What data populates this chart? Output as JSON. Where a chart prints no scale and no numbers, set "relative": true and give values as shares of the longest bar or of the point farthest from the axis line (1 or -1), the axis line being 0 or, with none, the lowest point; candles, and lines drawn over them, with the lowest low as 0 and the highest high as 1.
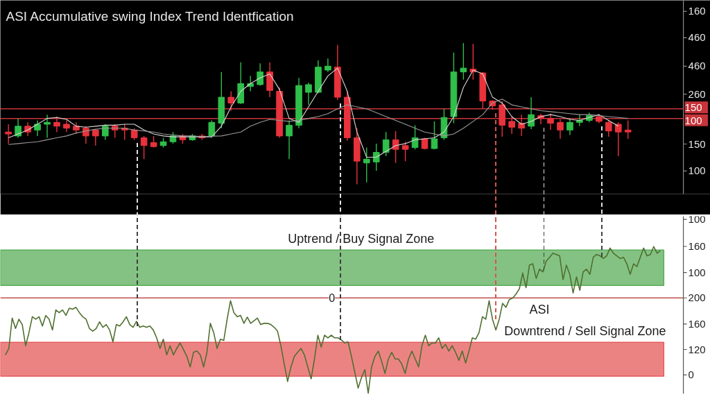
{
  "chart_data": [
    {
      "type": "candlestick",
      "title": "ASI Accumulative swing Index Trend Identfication",
      "relative": true,
      "tick_labels": false,
      "categories": [
        null,
        null,
        null,
        null,
        null,
        null,
        null,
        null,
        null,
        null,
        null,
        null,
        null,
        null,
        null,
        null,
        null,
        null,
        null,
        null,
        null,
        null,
        null,
        null,
        null,
        null,
        null,
        null,
        null,
        null,
        null,
        null,
        null,
        null,
        null,
        null,
        null,
        null,
        null,
        null,
        null,
        null,
        null,
        null,
        null,
        null,
        null,
        null,
        null,
        null,
        null,
        null,
        null,
        null,
        null,
        null,
        null,
        null,
        null,
        null,
        null,
        null,
        null,
        null,
        null
      ],
      "ohlc": [
        [
          0.37,
          0.425,
          0.288,
          0.356
        ],
        [
          0.342,
          0.466,
          0.329,
          0.411
        ],
        [
          0.411,
          0.438,
          0.342,
          0.37
        ],
        [
          0.384,
          0.452,
          0.342,
          0.425
        ],
        [
          0.425,
          0.493,
          0.329,
          0.438
        ],
        [
          0.438,
          0.479,
          0.37,
          0.411
        ],
        [
          0.425,
          0.452,
          0.37,
          0.397
        ],
        [
          0.411,
          0.438,
          0.356,
          0.384
        ],
        [
          0.397,
          0.411,
          0.288,
          0.342
        ],
        [
          0.384,
          0.39,
          0.274,
          0.342
        ],
        [
          0.342,
          0.425,
          0.315,
          0.411
        ],
        [
          0.411,
          0.425,
          0.329,
          0.384
        ],
        [
          0.397,
          0.425,
          0.315,
          0.384
        ],
        [
          0.384,
          0.397,
          0.315,
          0.329
        ],
        [
          0.329,
          0.342,
          0.178,
          0.274
        ],
        [
          0.295,
          0.342,
          0.26,
          0.267
        ],
        [
          0.274,
          0.329,
          0.26,
          0.301
        ],
        [
          0.301,
          0.37,
          0.288,
          0.342
        ],
        [
          0.342,
          0.356,
          0.288,
          0.315
        ],
        [
          0.315,
          0.356,
          0.308,
          0.342
        ],
        [
          0.342,
          0.356,
          0.315,
          0.329
        ],
        [
          0.342,
          0.452,
          0.329,
          0.438
        ],
        [
          0.432,
          0.795,
          0.397,
          0.616
        ],
        [
          0.616,
          0.658,
          0.521,
          0.575
        ],
        [
          0.575,
          0.863,
          0.568,
          0.712
        ],
        [
          0.692,
          0.767,
          0.658,
          0.712
        ],
        [
          0.705,
          0.856,
          0.699,
          0.795
        ],
        [
          0.795,
          0.863,
          0.616,
          0.664
        ],
        [
          0.658,
          0.685,
          0.329,
          0.342
        ],
        [
          0.342,
          0.452,
          0.178,
          0.418
        ],
        [
          0.418,
          0.753,
          0.397,
          0.699
        ],
        [
          0.651,
          0.719,
          0.562,
          0.705
        ],
        [
          0.651,
          0.877,
          0.644,
          0.829
        ],
        [
          0.808,
          0.89,
          0.795,
          0.836
        ],
        [
          0.829,
          0.986,
          0.596,
          0.616
        ],
        [
          0.616,
          0.658,
          0.308,
          0.329
        ],
        [
          0.329,
          0.397,
          0,
          0.164
        ],
        [
          0.151,
          0.26,
          0.014,
          0.178
        ],
        [
          0.158,
          0.288,
          0.096,
          0.226
        ],
        [
          0.226,
          0.37,
          0.199,
          0.315
        ],
        [
          0.315,
          0.377,
          0.151,
          0.247
        ],
        [
          0.274,
          0.301,
          0.164,
          0.247
        ],
        [
          0.26,
          0.418,
          0.247,
          0.329
        ],
        [
          0.322,
          0.329,
          0.247,
          0.253
        ],
        [
          0.253,
          0.445,
          0.247,
          0.322
        ],
        [
          0.329,
          0.534,
          0.315,
          0.473
        ],
        [
          0.479,
          0.932,
          0.432,
          0.795
        ],
        [
          0.795,
          1,
          0.74,
          0.822
        ],
        [
          0.815,
          0.993,
          0.74,
          0.795
        ],
        [
          0.788,
          0.795,
          0.534,
          0.589
        ],
        [
          0.589,
          0.596,
          0.527,
          0.555
        ],
        [
          0.562,
          0.589,
          0.336,
          0.418
        ],
        [
          0.445,
          0.479,
          0.356,
          0.404
        ],
        [
          0.432,
          0.493,
          0.342,
          0.397
        ],
        [
          0.411,
          0.616,
          0.39,
          0.493
        ],
        [
          0.486,
          0.5,
          0.425,
          0.466
        ],
        [
          0.466,
          0.5,
          0.384,
          0.432
        ],
        [
          0.438,
          0.459,
          0.322,
          0.384
        ],
        [
          0.384,
          0.466,
          0.349,
          0.438
        ],
        [
          0.438,
          0.493,
          0.411,
          0.452
        ],
        [
          0.452,
          0.507,
          0.438,
          0.486
        ],
        [
          0.479,
          0.493,
          0.432,
          0.445
        ],
        [
          0.438,
          0.452,
          0.336,
          0.377
        ],
        [
          0.425,
          0.438,
          0.199,
          0.37
        ],
        [
          0.384,
          0.452,
          0.322,
          0.37
        ]
      ],
      "colors": [
        "#e8323c",
        "#2fbf4a",
        "#e8323c",
        "#2fbf4a",
        "#2fbf4a",
        "#e8323c",
        "#e8323c",
        "#e8323c",
        "#e8323c",
        "#e8323c",
        "#2fbf4a",
        "#e8323c",
        "#e8323c",
        "#e8323c",
        "#e8323c",
        "#e8323c",
        "#2fbf4a",
        "#2fbf4a",
        "#e8323c",
        "#2fbf4a",
        "#e8323c",
        "#2fbf4a",
        "#2fbf4a",
        "#e8323c",
        "#2fbf4a",
        "#2fbf4a",
        "#2fbf4a",
        "#e8323c",
        "#e8323c",
        "#2fbf4a",
        "#2fbf4a",
        "#2fbf4a",
        "#2fbf4a",
        "#2fbf4a",
        "#e8323c",
        "#e8323c",
        "#e8323c",
        "#2fbf4a",
        "#2fbf4a",
        "#2fbf4a",
        "#e8323c",
        "#e8323c",
        "#2fbf4a",
        "#e8323c",
        "#2fbf4a",
        "#2fbf4a",
        "#2fbf4a",
        "#2fbf4a",
        "#e8323c",
        "#e8323c",
        "#e8323c",
        "#e8323c",
        "#e8323c",
        "#e8323c",
        "#2fbf4a",
        "#e8323c",
        "#e8323c",
        "#e8323c",
        "#2fbf4a",
        "#2fbf4a",
        "#2fbf4a",
        "#e8323c",
        "#e8323c",
        "#e8323c",
        "#e8323c"
      ],
      "series": [
        {
          "type": "line",
          "color": "#d8d8d8",
          "values": [
            0.329,
            0.356,
            0.384,
            0.425,
            0.466,
            0.473,
            0.459,
            0.411,
            0.404,
            0.411,
            0.418,
            0.418,
            0.425,
            0.425,
            0.384,
            0.356,
            0.342,
            0.336,
            0.336,
            0.336,
            0.336,
            0.336,
            0.411,
            0.548,
            0.658,
            0.712,
            0.753,
            0.781,
            0.671,
            0.466,
            0.438,
            0.548,
            0.658,
            0.767,
            0.822,
            0.658,
            0.37,
            0.192,
            0.192,
            0.233,
            0.274,
            0.288,
            0.315,
            0.322,
            0.329,
            0.37,
            0.479,
            0.685,
            0.808,
            0.781,
            0.616,
            0.575,
            0.479,
            0.425,
            0.445,
            0.479,
            0.493,
            0.479,
            0.459,
            0.452,
            0.473,
            0.493,
            0.452,
            0.411,
            null
          ]
        },
        {
          "type": "line",
          "color": "#9a9a9a",
          "values": [
            0.281,
            0.288,
            0.295,
            0.301,
            0.315,
            0.329,
            0.342,
            0.363,
            0.377,
            0.39,
            0.397,
            0.397,
            0.397,
            0.384,
            0.377,
            0.37,
            0.356,
            0.349,
            0.342,
            0.342,
            0.338,
            0.34,
            0.342,
            0.356,
            0.37,
            0.411,
            0.438,
            0.459,
            0.452,
            0.445,
            0.452,
            0.466,
            0.479,
            0.5,
            0.534,
            0.562,
            0.548,
            0.534,
            0.507,
            0.479,
            0.452,
            0.425,
            0.397,
            0.37,
            0.356,
            0.342,
            0.356,
            0.397,
            0.445,
            0.493,
            0.575,
            0.603,
            0.562,
            0.548,
            0.534,
            0.521,
            0.514,
            0.507,
            0.5,
            0.493,
            0.493,
            0.486,
            0.479,
            0.473,
            0.466
          ]
        }
      ],
      "ref_lines": [
        {
          "axis": "y",
          "value": 0.534,
          "color": "#c8343a"
        },
        {
          "axis": "y",
          "value": 0.466,
          "color": "#c8343a"
        }
      ],
      "annotations": [
        "160",
        "460",
        "460",
        "260",
        "150",
        "100",
        "150",
        "100"
      ]
    },
    {
      "type": "line",
      "relative": true,
      "tick_labels": false,
      "categories": [
        null,
        null,
        null,
        null,
        null,
        null,
        null,
        null,
        null,
        null,
        null,
        null,
        null,
        null,
        null,
        null,
        null,
        null,
        null,
        null,
        null,
        null,
        null,
        null,
        null,
        null,
        null,
        null,
        null,
        null,
        null,
        null,
        null,
        null,
        null,
        null,
        null,
        null,
        null,
        null,
        null,
        null,
        null,
        null,
        null,
        null,
        null,
        null,
        null,
        null,
        null,
        null,
        null,
        null,
        null,
        null,
        null,
        null,
        null,
        null,
        null,
        null,
        null,
        null,
        null,
        null,
        null,
        null,
        null,
        null,
        null,
        null,
        null,
        null,
        null,
        null,
        null,
        null,
        null,
        null,
        null,
        null,
        null,
        null,
        null,
        null,
        null,
        null,
        null,
        null,
        null,
        null,
        null,
        null,
        null,
        null,
        null,
        null,
        null,
        null,
        null,
        null,
        null,
        null,
        null,
        null,
        null,
        null,
        null,
        null,
        null,
        null,
        null,
        null,
        null,
        null,
        null,
        null,
        null,
        null,
        null,
        null,
        null,
        null,
        null,
        null,
        null,
        null,
        null,
        null,
        null,
        null,
        null,
        null,
        null,
        null,
        null,
        null,
        null,
        null,
        null,
        null,
        null,
        null,
        null,
        null,
        null,
        null,
        null,
        null,
        null,
        null,
        null,
        null,
        null,
        null,
        null,
        null,
        null,
        null,
        null,
        null,
        null,
        null,
        null,
        null,
        null,
        null,
        null,
        null,
        null,
        null,
        null,
        null,
        null,
        null,
        null,
        null,
        null,
        null,
        null,
        null,
        null,
        null,
        null,
        null,
        null,
        null,
        null,
        null,
        null,
        null,
        null,
        null,
        null,
        null
      ],
      "series": [
        {
          "name": "ASI",
          "color": "#4f6f2f",
          "values": [
            0.262,
            0.306,
            0.513,
            0.442,
            0.505,
            0.469,
            0.324,
            0.414,
            0.522,
            0.505,
            0.522,
            0.459,
            0.531,
            0.505,
            0.432,
            0.568,
            0.55,
            0.568,
            0.531,
            0.58,
            0.573,
            0.586,
            0.55,
            0.522,
            0.505,
            0.442,
            0.424,
            0.442,
            0.487,
            0.45,
            0.469,
            0.432,
            0.351,
            0.469,
            0.459,
            0.487,
            0.522,
            0.469,
            0.45,
            0.49,
            0.45,
            0.459,
            0.45,
            0.459,
            0.432,
            0.378,
            0.306,
            0.369,
            0.262,
            0.324,
            0.262,
            0.306,
            0.343,
            0.298,
            0.252,
            0.18,
            0.28,
            0.288,
            0.262,
            0.18,
            0.28,
            0.477,
            0.414,
            0.306,
            0.369,
            0.361,
            0.505,
            0.631,
            0.55,
            0.522,
            0.531,
            0.477,
            0.519,
            0.477,
            0.495,
            0.513,
            0.469,
            0.477,
            0.477,
            0.469,
            0.45,
            0.424,
            0.324,
            0.199,
            0.081,
            0.18,
            0.252,
            0.28,
            0.306,
            0.262,
            0.18,
            0.099,
            0.234,
            0.396,
            0.315,
            0.396,
            0.378,
            0.396,
            0.378,
            0.378,
            0.364,
            0.343,
            0.351,
            0.252,
            0.144,
            0.036,
            0.108,
            0.162,
            0,
            0.18,
            0.252,
            0.288,
            0.217,
            0.136,
            0.234,
            0.28,
            0.234,
            0.234,
            0.199,
            0.136,
            0.234,
            0.288,
            0.234,
            0.18,
            0.324,
            0.396,
            0.324,
            0.343,
            0.343,
            0.378,
            0.306,
            0.333,
            0.288,
            0.324,
            0.28,
            0.225,
            0.288,
            0.207,
            0.288,
            0.378,
            0.369,
            0.414,
            0.522,
            0.505,
            0.631,
            0.505,
            0.432,
            0.505,
            0.613,
            0.586,
            0.639,
            0.649,
            0.676,
            0.712,
            0.82,
            0.72,
            0.874,
            0.883,
            0.783,
            0.846,
            0.828,
            0.901,
            0.927,
            0.955,
            0.946,
            0.937,
            0.775,
            0.874,
            0.811,
            0.684,
            0.793,
            0.702,
            0.828,
            0.846,
            0.811,
            0.927,
            0.946,
            0.937,
            0.919,
            0.937,
            0.99,
            0.955,
            0.937,
            0.919,
            0.927,
            0.883,
            0.811,
            0.883,
            0.864,
            0.927,
            0.99,
            0.937,
            0.946,
            1,
            0.955,
            0.972
          ]
        }
      ],
      "ref_lines": [
        {
          "axis": "y",
          "value": 0.65,
          "color": "#c0504d"
        }
      ],
      "bands": [
        {
          "axis": "y",
          "from": 0.735,
          "to": 0.977,
          "label": "Uptrend / Buy Signal Zone",
          "color": "#5aad5a"
        },
        {
          "axis": "y",
          "from": 0.117,
          "to": 0.347,
          "label": "Downtrend / Sell Signal Zone",
          "color": "#e55a5a"
        }
      ],
      "annotations": [
        "100",
        "160",
        "100",
        "200",
        "160",
        "120",
        "0",
        "0"
      ]
    }
  ]
}
